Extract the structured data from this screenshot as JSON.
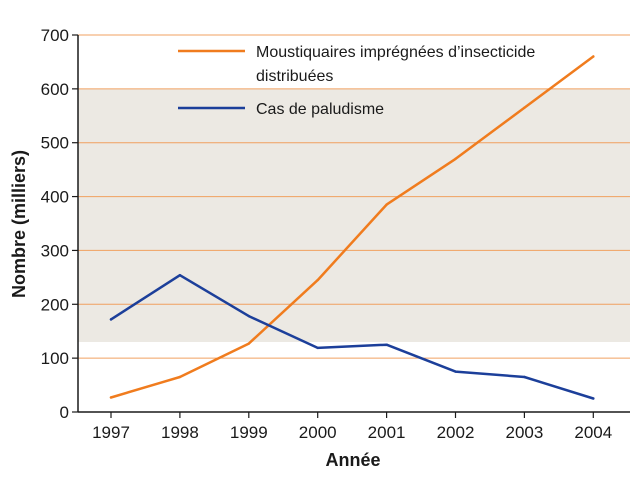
{
  "chart_data": {
    "type": "line",
    "title": "",
    "xlabel": "Année",
    "ylabel": "Nombre (milliers)",
    "categories": [
      "1997",
      "1998",
      "1999",
      "2000",
      "2001",
      "2002",
      "2003",
      "2004"
    ],
    "ylim": [
      0,
      700
    ],
    "yticks": [
      "0",
      "100",
      "200",
      "300",
      "400",
      "500",
      "600",
      "700"
    ],
    "grid": true,
    "legend_position": "top",
    "series": [
      {
        "name": "Moustiquaires imprégnées d’insecticide distribuées",
        "legend_lines": [
          "Moustiquaires imprégnées d’insecticide",
          "distribuées"
        ],
        "color": "#f07c1e",
        "values": [
          27,
          65,
          127,
          245,
          385,
          470,
          565,
          660
        ]
      },
      {
        "name": "Cas de paludisme",
        "legend_lines": [
          "Cas de paludisme"
        ],
        "color": "#1c3f9a",
        "values": [
          172,
          254,
          178,
          119,
          125,
          75,
          65,
          25
        ]
      }
    ],
    "colors": {
      "grid": "#f0a060",
      "shade": "#ece9e3",
      "axis": "#1a1a1a"
    }
  }
}
